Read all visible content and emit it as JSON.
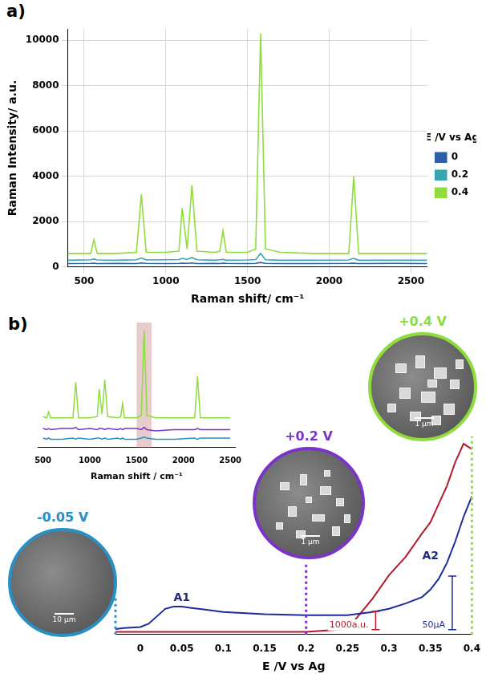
{
  "chart_data": [
    {
      "panel_label": "a)",
      "type": "line",
      "x_label": "Raman shift/ cm⁻¹",
      "y_label": "Raman Intensity/ a.u.",
      "legend_title": "E /V vs Ag",
      "legend": "right",
      "grid": true,
      "x": [
        400,
        540,
        560,
        580,
        700,
        820,
        850,
        880,
        1000,
        1080,
        1100,
        1130,
        1160,
        1190,
        1300,
        1330,
        1350,
        1370,
        1500,
        1550,
        1580,
        1610,
        1700,
        1900,
        2120,
        2150,
        2180,
        2400,
        2600
      ],
      "series": [
        {
          "name": "0",
          "color": "#2c5fa8",
          "values": [
            150,
            160,
            170,
            150,
            160,
            150,
            180,
            160,
            150,
            160,
            170,
            160,
            180,
            150,
            160,
            150,
            170,
            160,
            150,
            160,
            200,
            160,
            150,
            150,
            160,
            170,
            150,
            160,
            150
          ]
        },
        {
          "name": "0.2",
          "color": "#36a6b0",
          "values": [
            300,
            320,
            350,
            310,
            300,
            320,
            400,
            310,
            320,
            330,
            380,
            340,
            420,
            320,
            300,
            320,
            340,
            300,
            310,
            330,
            600,
            320,
            300,
            300,
            310,
            380,
            300,
            300,
            300
          ]
        },
        {
          "name": "0.4",
          "color": "#8fdc3c",
          "values": [
            600,
            600,
            1200,
            600,
            600,
            650,
            3200,
            650,
            650,
            700,
            2600,
            800,
            3600,
            700,
            650,
            700,
            1600,
            650,
            650,
            800,
            10300,
            800,
            650,
            600,
            600,
            4000,
            600,
            600,
            600
          ]
        }
      ],
      "xlim": [
        400,
        2600
      ],
      "xticks": [
        500,
        1000,
        1500,
        2000,
        2500
      ],
      "ylim": [
        0,
        10500
      ],
      "yticks": [
        0,
        2000,
        4000,
        6000,
        8000,
        10000
      ]
    },
    {
      "type": "line",
      "x_label": "Raman shift / cm⁻¹",
      "grid": false,
      "tick_labels": "x",
      "x": [
        500,
        540,
        560,
        580,
        700,
        820,
        850,
        880,
        1000,
        1080,
        1100,
        1130,
        1160,
        1190,
        1300,
        1330,
        1350,
        1370,
        1500,
        1550,
        1580,
        1610,
        1700,
        1900,
        2120,
        2150,
        2180,
        2500
      ],
      "series": [
        {
          "color": "#8fdc3c",
          "values": [
            26,
            25,
            30,
            25,
            25,
            25,
            55,
            25,
            25,
            26,
            49,
            28,
            57,
            26,
            25,
            26,
            37,
            25,
            25,
            27,
            98,
            27,
            25,
            25,
            25,
            60,
            25,
            25
          ]
        },
        {
          "color": "#7a34c8",
          "values": [
            16,
            15,
            16,
            15,
            16,
            16,
            17,
            15,
            16,
            15,
            16,
            16,
            15,
            16,
            15,
            16,
            15,
            16,
            16,
            15,
            17,
            15,
            14,
            15,
            15,
            16,
            15,
            15
          ]
        },
        {
          "color": "#2a8fc4",
          "values": [
            8,
            7,
            8,
            7,
            7,
            8,
            7,
            8,
            7,
            8,
            8,
            7,
            8,
            7,
            8,
            7,
            8,
            7,
            7,
            8,
            9,
            8,
            7,
            7,
            8,
            7,
            8,
            8
          ]
        }
      ],
      "xlim": [
        450,
        2550
      ],
      "xticks": [
        500,
        1000,
        1500,
        2000,
        2500
      ],
      "ylim": [
        0,
        105
      ],
      "highlight_x": [
        1500,
        1660
      ]
    },
    {
      "panel_label": "b)",
      "type": "line",
      "x_label": "E /V vs Ag",
      "grid": false,
      "tick_labels": "x",
      "x": [
        -0.03,
        -0.02,
        0,
        0.01,
        0.02,
        0.03,
        0.04,
        0.05,
        0.06,
        0.08,
        0.1,
        0.15,
        0.2,
        0.25,
        0.28,
        0.3,
        0.32,
        0.34,
        0.35,
        0.36,
        0.37,
        0.38,
        0.39,
        0.4
      ],
      "series": [
        {
          "color": "#1f2a9a",
          "values": [
            0,
            1,
            2,
            5,
            12,
            19,
            21,
            21,
            20,
            18,
            16,
            14,
            13,
            13,
            16,
            19,
            24,
            30,
            37,
            47,
            62,
            82,
            105,
            124
          ]
        },
        {
          "color": "#b01c2e",
          "axis": "y2",
          "values": [
            0,
            -1,
            0,
            0,
            -1,
            0,
            -1,
            -1,
            0,
            0,
            -1,
            -1,
            0,
            150,
            1800,
            3100,
            4100,
            5400,
            6000,
            7000,
            8000,
            9300,
            10300,
            10000
          ]
        }
      ],
      "xlim": [
        -0.03,
        0.4
      ],
      "xticks": [
        0,
        0.05,
        0.1,
        0.15,
        0.2,
        0.25,
        0.3,
        0.35,
        0.4
      ],
      "ylim": [
        -5,
        180
      ],
      "y2lim": [
        -150,
        10700
      ],
      "annotations": [
        {
          "text": "A1",
          "x": 0.05,
          "y": 29
        },
        {
          "text": "A2",
          "x": 0.35,
          "y": 68
        }
      ],
      "scale_bars": [
        {
          "label": "1000a.u.",
          "value": 1000,
          "axis": "y2",
          "color": "#b01c2e"
        },
        {
          "label": "50µA",
          "value": 50,
          "axis": "y",
          "color": "#1f2a9a"
        }
      ],
      "sem_images": [
        {
          "label": "-0.05 V",
          "x": -0.03,
          "color": "#2a8fc4",
          "scale_bar": "10 µm"
        },
        {
          "label": "+0.2 V",
          "x": 0.2,
          "color": "#7a34c8",
          "scale_bar": "1 µm"
        },
        {
          "label": "+0.4 V",
          "x": 0.4,
          "color": "#8fdc3c",
          "scale_bar": "1 µm"
        }
      ]
    }
  ]
}
